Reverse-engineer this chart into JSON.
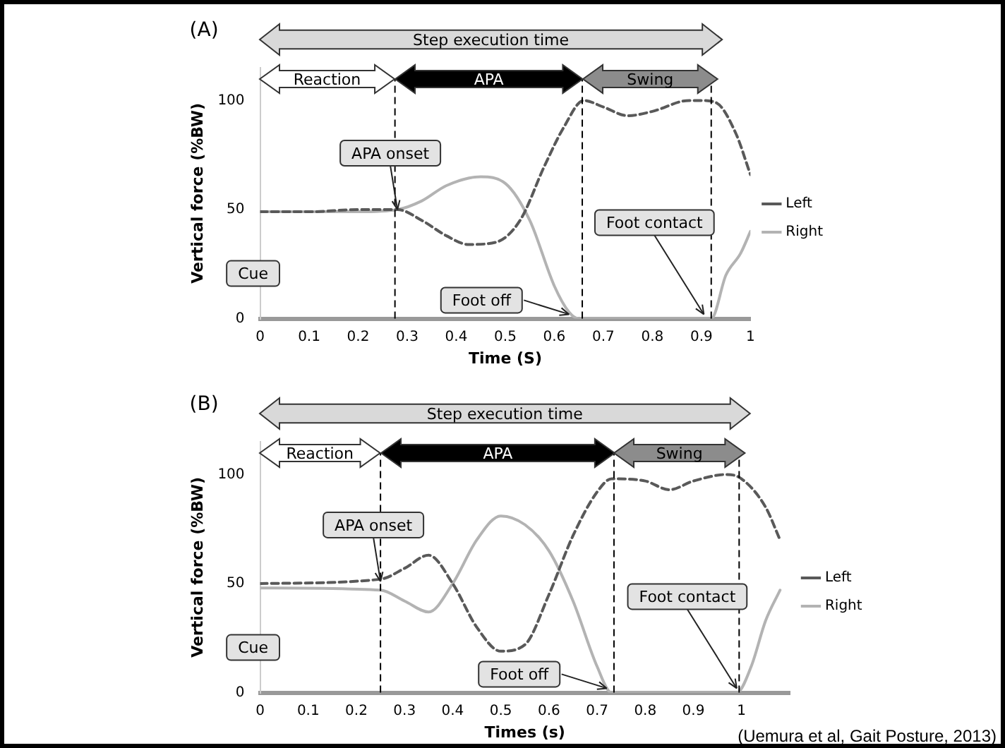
{
  "chart_data": [
    {
      "type": "line",
      "title": "(A)",
      "xlabel": "Time (S)",
      "ylabel": "Vertical force (%BW)",
      "xlim": [
        0,
        1
      ],
      "xticks": [
        0,
        0.1,
        0.2,
        0.3,
        0.4,
        0.5,
        0.6,
        0.7,
        0.8,
        0.9,
        1
      ],
      "ylim": [
        0,
        115
      ],
      "yticks": [
        0,
        50,
        100
      ],
      "grid": false,
      "legend": "right",
      "marker": "none",
      "series": [
        {
          "name": "Left",
          "color": "#595959",
          "line_style": "dashed",
          "x": [
            0,
            0.1,
            0.2,
            0.28,
            0.33,
            0.38,
            0.425,
            0.48,
            0.53,
            0.58,
            0.62,
            0.66,
            0.7,
            0.75,
            0.8,
            0.875,
            0.9,
            0.93,
            0.97,
            1
          ],
          "values": [
            49,
            49,
            50,
            50,
            45,
            38,
            34,
            35,
            45,
            70,
            88,
            100,
            97,
            93,
            95,
            100,
            100,
            99,
            85,
            66
          ]
        },
        {
          "name": "Right",
          "color": "#b3b3b3",
          "line_style": "solid",
          "x": [
            0,
            0.1,
            0.2,
            0.28,
            0.33,
            0.38,
            0.45,
            0.5,
            0.55,
            0.6,
            0.63,
            0.65,
            0.7,
            0.8,
            0.92,
            0.95,
            0.98,
            1
          ],
          "values": [
            49,
            49,
            49,
            50,
            54,
            61,
            65,
            62,
            45,
            15,
            3,
            0,
            0,
            0,
            0,
            20,
            30,
            40
          ]
        }
      ],
      "ref_lines": [
        {
          "axis": "x",
          "value": 0.275,
          "line_style": "dashed",
          "color": "#000000"
        },
        {
          "axis": "x",
          "value": 0.657,
          "line_style": "dashed",
          "color": "#000000"
        },
        {
          "axis": "x",
          "value": 0.92,
          "line_style": "dashed",
          "color": "#000000"
        }
      ],
      "annotations": [
        "Step execution time",
        "Reaction",
        "APA",
        "Swing",
        "Cue",
        {
          "text": "APA onset",
          "x": 0.28,
          "y": 50
        },
        {
          "text": "Foot off",
          "x": 0.63,
          "y": 2
        },
        {
          "text": "Foot contact",
          "x": 0.905,
          "y": 2
        }
      ]
    },
    {
      "type": "line",
      "title": "(B)",
      "xlabel": "Times (s)",
      "ylabel": "Vertical force (%BW)",
      "xlim": [
        0,
        1.1
      ],
      "xticks": [
        0,
        0.1,
        0.2,
        0.3,
        0.4,
        0.5,
        0.6,
        0.7,
        0.8,
        0.9,
        1
      ],
      "ylim": [
        0,
        115
      ],
      "yticks": [
        0,
        50,
        100
      ],
      "grid": false,
      "legend": "right",
      "marker": "none",
      "series": [
        {
          "name": "Left",
          "color": "#595959",
          "line_style": "dashed",
          "x": [
            0,
            0.25,
            0.3,
            0.35,
            0.4,
            0.45,
            0.5,
            0.55,
            0.6,
            0.65,
            0.7,
            0.73,
            0.8,
            0.85,
            0.9,
            0.97,
            1,
            1.05,
            1.08
          ],
          "values": [
            50,
            52,
            57,
            63,
            50,
            30,
            19,
            22,
            45,
            72,
            92,
            98,
            97,
            93,
            97,
            100,
            98,
            85,
            70
          ]
        },
        {
          "name": "Right",
          "color": "#b3b3b3",
          "line_style": "solid",
          "x": [
            0,
            0.25,
            0.3,
            0.35,
            0.4,
            0.45,
            0.5,
            0.55,
            0.6,
            0.65,
            0.7,
            0.73,
            0.8,
            0.9,
            0.99,
            1.02,
            1.05,
            1.08
          ],
          "values": [
            48,
            47,
            42,
            37,
            50,
            70,
            81,
            77,
            65,
            42,
            12,
            0,
            0,
            0,
            0,
            12,
            33,
            47
          ]
        }
      ],
      "ref_lines": [
        {
          "axis": "x",
          "value": 0.25,
          "line_style": "dashed",
          "color": "#000000"
        },
        {
          "axis": "x",
          "value": 0.735,
          "line_style": "dashed",
          "color": "#000000"
        },
        {
          "axis": "x",
          "value": 0.995,
          "line_style": "dashed",
          "color": "#000000"
        }
      ],
      "annotations": [
        "Step execution time",
        "Reaction",
        "APA",
        "Swing",
        "Cue",
        {
          "text": "APA onset",
          "x": 0.25,
          "y": 51
        },
        {
          "text": "Foot off",
          "x": 0.72,
          "y": 2
        },
        {
          "text": "Foot contact",
          "x": 0.99,
          "y": 2
        },
        "(Uemura et al, Gait Posture, 2013)"
      ]
    }
  ]
}
